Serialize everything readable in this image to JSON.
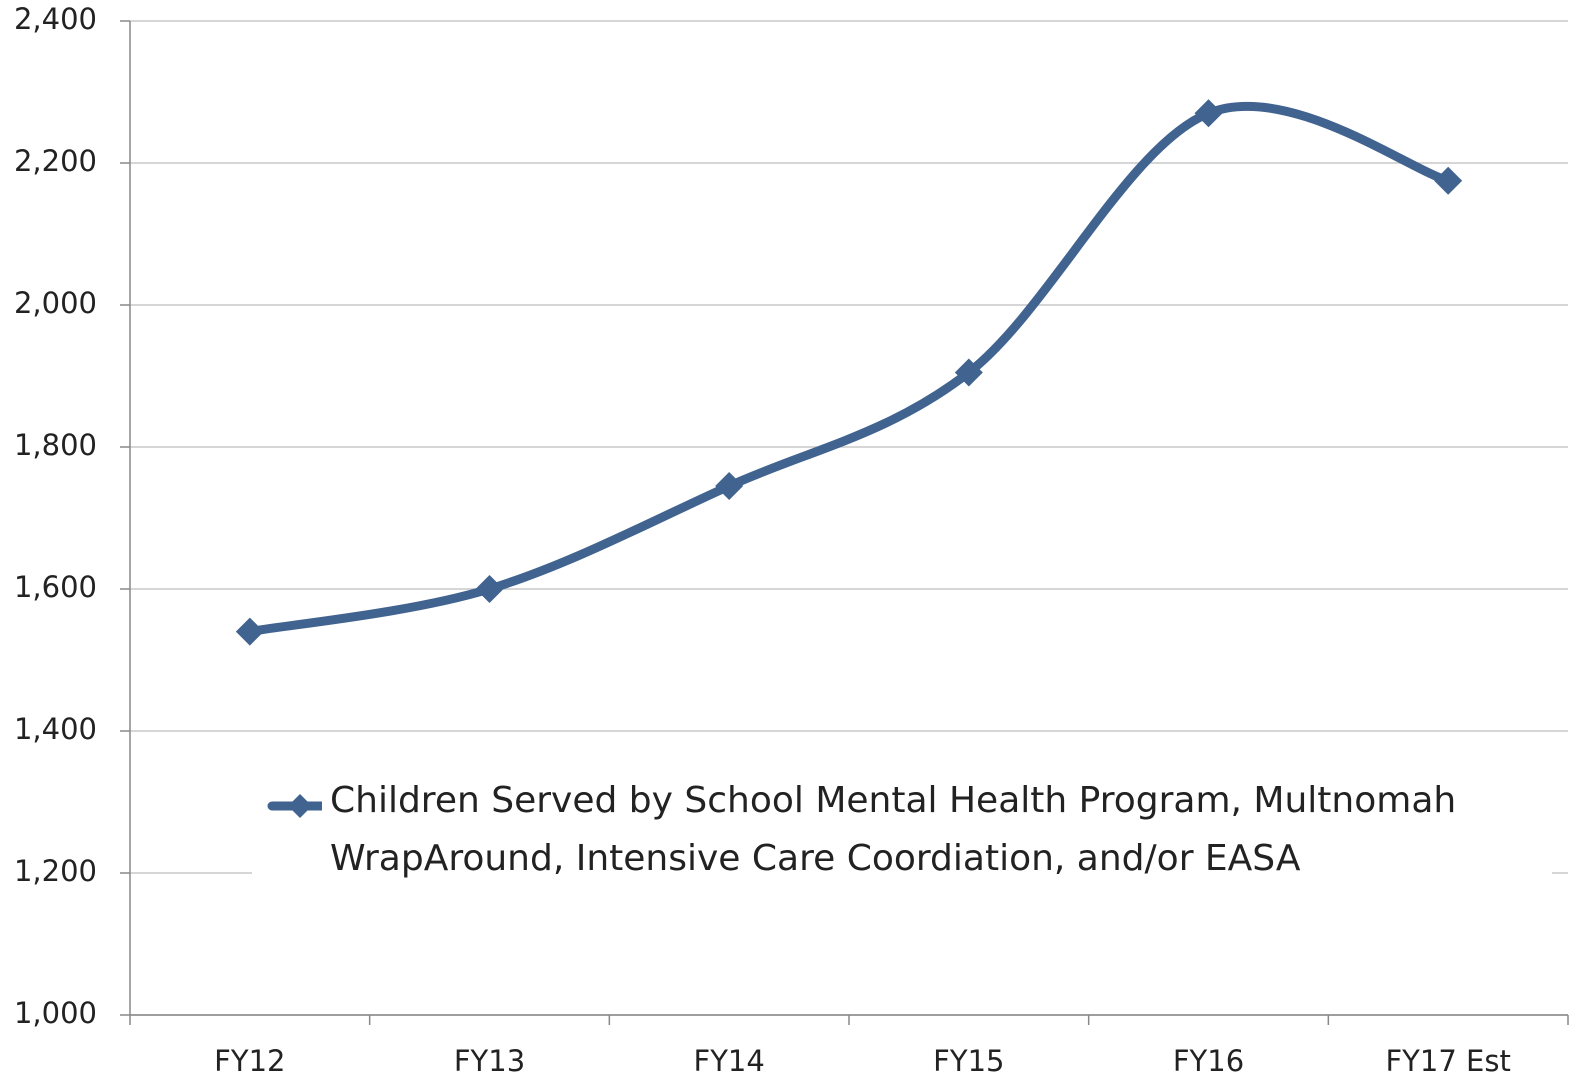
{
  "chart_data": {
    "type": "line",
    "categories": [
      "FY12",
      "FY13",
      "FY14",
      "FY15",
      "FY16",
      "FY17 Est"
    ],
    "series": [
      {
        "name": "Children Served by School Mental Health Program, Multnomah WrapAround, Intensive Care Coordiation, and/or EASA",
        "color": "#41638f",
        "values": [
          1540,
          1600,
          1745,
          1905,
          2270,
          2175
        ]
      }
    ],
    "ylim": [
      1000,
      2400
    ],
    "yticks": [
      {
        "value": 1000,
        "label": "1,000"
      },
      {
        "value": 1200,
        "label": "1,200"
      },
      {
        "value": 1400,
        "label": "1,400"
      },
      {
        "value": 1600,
        "label": "1,600"
      },
      {
        "value": 1800,
        "label": "1,800"
      },
      {
        "value": 2000,
        "label": "2,000"
      },
      {
        "value": 2200,
        "label": "2,200"
      },
      {
        "value": 2400,
        "label": "2,400"
      }
    ],
    "grid": true,
    "smooth": true
  }
}
